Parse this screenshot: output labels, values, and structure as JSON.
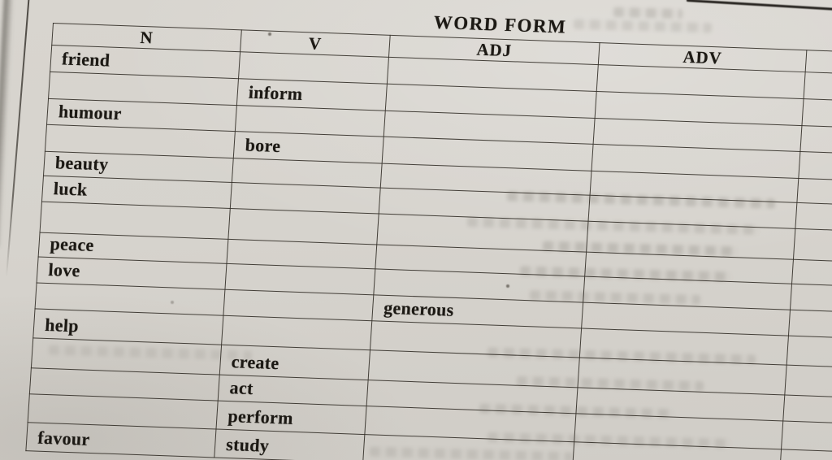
{
  "page": {
    "title": "WORD FORM"
  },
  "table": {
    "headers": [
      "N",
      "V",
      "ADJ",
      "ADV"
    ],
    "rows": [
      [
        "friend",
        "",
        "",
        ""
      ],
      [
        "",
        "inform",
        "",
        ""
      ],
      [
        "humour",
        "",
        "",
        ""
      ],
      [
        "",
        "bore",
        "",
        ""
      ],
      [
        "beauty",
        "",
        "",
        ""
      ],
      [
        "luck",
        "",
        "",
        ""
      ],
      [
        "",
        "",
        "",
        ""
      ],
      [
        "peace",
        "",
        "",
        ""
      ],
      [
        "love",
        "",
        "",
        ""
      ],
      [
        "",
        "",
        "generous",
        ""
      ],
      [
        "help",
        "",
        "",
        ""
      ],
      [
        "",
        "create",
        "",
        ""
      ],
      [
        "",
        "act",
        "",
        ""
      ],
      [
        "",
        "perform",
        "",
        ""
      ],
      [
        "favour",
        "study",
        "",
        ""
      ]
    ]
  }
}
